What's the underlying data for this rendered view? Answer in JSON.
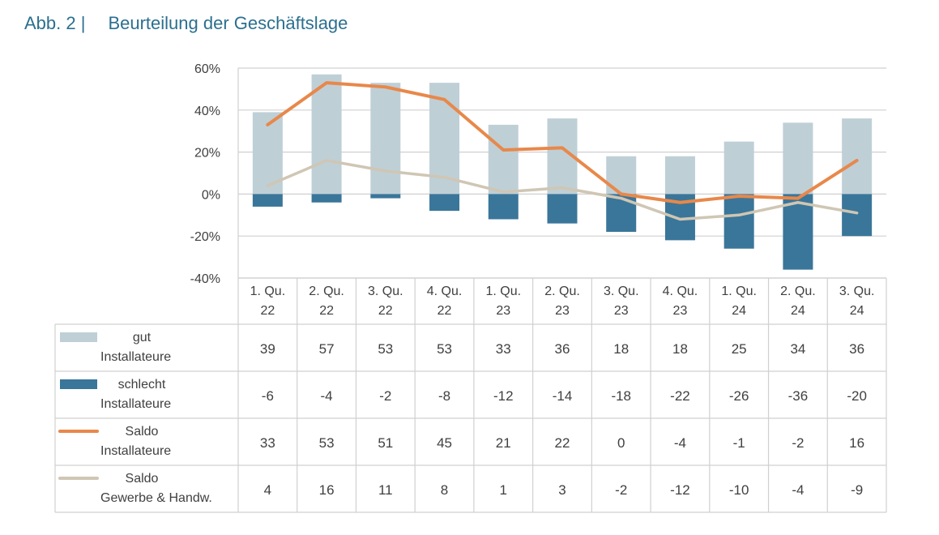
{
  "figure": {
    "label": "Abb. 2 |",
    "title": "Beurteilung der Geschäftslage"
  },
  "colors": {
    "gut": "#bfcfd6",
    "schlecht": "#3a7699",
    "saldo_installateure": "#e8884a",
    "saldo_gewerbe": "#cfc6b4",
    "grid": "#d0d0d0",
    "title": "#2b6f8f"
  },
  "chart_data": {
    "type": "bar",
    "categories": [
      [
        "1. Qu.",
        "22"
      ],
      [
        "2. Qu.",
        "22"
      ],
      [
        "3. Qu.",
        "22"
      ],
      [
        "4. Qu.",
        "22"
      ],
      [
        "1. Qu.",
        "23"
      ],
      [
        "2. Qu.",
        "23"
      ],
      [
        "3. Qu.",
        "23"
      ],
      [
        "4. Qu.",
        "23"
      ],
      [
        "1. Qu.",
        "24"
      ],
      [
        "2. Qu.",
        "24"
      ],
      [
        "3. Qu.",
        "24"
      ]
    ],
    "ylim": [
      -40,
      60
    ],
    "yticks": [
      60,
      40,
      20,
      0,
      -20,
      -40
    ],
    "ytick_labels": [
      "60%",
      "40%",
      "20%",
      "0%",
      "-20%",
      "-40%"
    ],
    "grid": true,
    "legend_placement": "table-left",
    "series": [
      {
        "key": "gut",
        "kind": "bar",
        "name_lines": [
          "gut",
          "Installateure"
        ],
        "values": [
          39,
          57,
          53,
          53,
          33,
          36,
          18,
          18,
          25,
          34,
          36
        ]
      },
      {
        "key": "schlecht",
        "kind": "bar",
        "name_lines": [
          "schlecht",
          "Installateure"
        ],
        "values": [
          -6,
          -4,
          -2,
          -8,
          -12,
          -14,
          -18,
          -22,
          -26,
          -36,
          -20
        ]
      },
      {
        "key": "saldo_installateure",
        "kind": "line",
        "name_lines": [
          "Saldo",
          "Installateure"
        ],
        "values": [
          33,
          53,
          51,
          45,
          21,
          22,
          0,
          -4,
          -1,
          -2,
          16
        ]
      },
      {
        "key": "saldo_gewerbe",
        "kind": "line",
        "name_lines": [
          "Saldo",
          "Gewerbe & Handw."
        ],
        "values": [
          4,
          16,
          11,
          8,
          1,
          3,
          -2,
          -12,
          -10,
          -4,
          -9
        ]
      }
    ]
  }
}
